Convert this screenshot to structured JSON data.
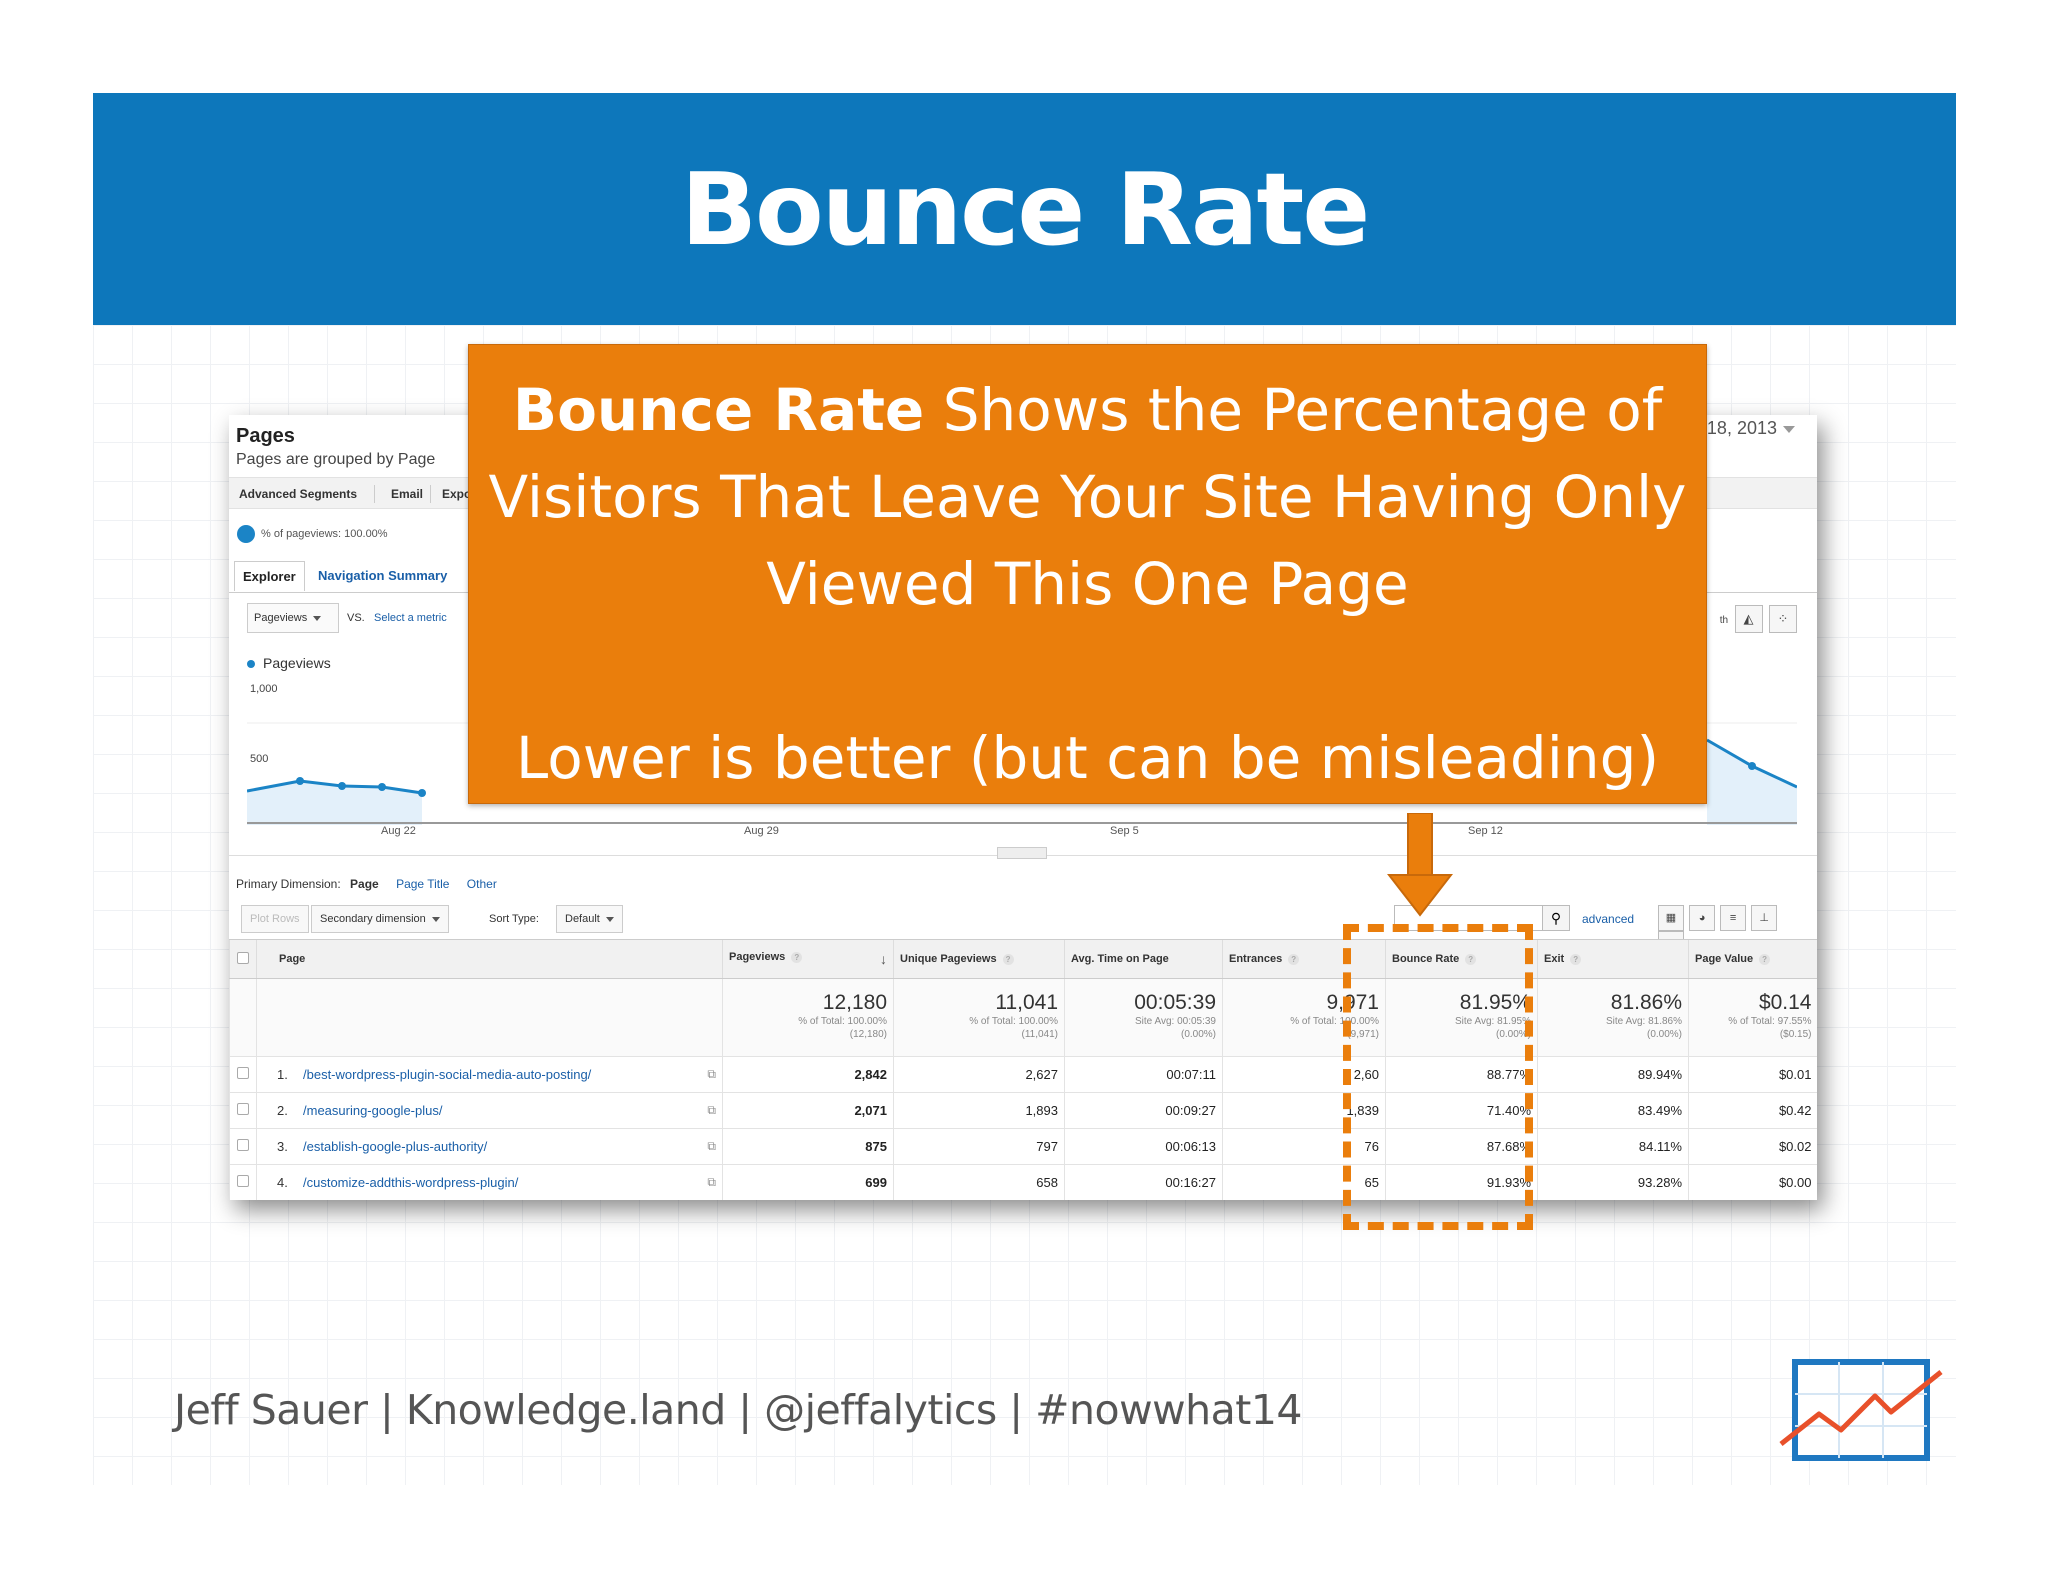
{
  "slide": {
    "title": "Bounce Rate",
    "callout_bold": "Bounce Rate",
    "callout_rest": " Shows the Percentage of Visitors That Leave Your Site Having Only Viewed This One Page",
    "callout_note": "Lower is better (but can be misleading)",
    "footer": "Jeff Sauer | Knowledge.land | @jeffalytics | #nowwhat14"
  },
  "ga": {
    "page_title": "Pages",
    "page_subtitle": "Pages are grouped by Page",
    "date_partial": "18, 2013",
    "segbar": [
      "Advanced Segments",
      "Email",
      "Expo"
    ],
    "pct_pageviews": "% of pageviews: 100.00%",
    "tabs": [
      "Explorer",
      "Navigation Summary"
    ],
    "metric_select": "Pageviews",
    "vs": "VS.",
    "select_metric": "Select a metric",
    "legend": "Pageviews",
    "y_labels": [
      "1,000",
      "500"
    ],
    "x_labels": [
      "Aug 22",
      "Aug 29",
      "Sep 5",
      "Sep 12"
    ],
    "view_partial": "th",
    "primary_dimension_label": "Primary Dimension:",
    "primary_dimension": "Page",
    "page_title_link": "Page Title",
    "other_link": "Other",
    "plot_rows": "Plot Rows",
    "secondary_dimension": "Secondary dimension",
    "sort_type_label": "Sort Type:",
    "sort_type": "Default",
    "advanced": "advanced",
    "columns": [
      "Page",
      "Pageviews",
      "Unique Pageviews",
      "Avg. Time on Page",
      "Entrances",
      "Bounce Rate",
      "Exit",
      "Page Value"
    ],
    "totals": [
      {
        "big": "12,180",
        "s1": "% of Total: 100.00%",
        "s2": "(12,180)"
      },
      {
        "big": "11,041",
        "s1": "% of Total: 100.00%",
        "s2": "(11,041)"
      },
      {
        "big": "00:05:39",
        "s1": "Site Avg: 00:05:39",
        "s2": "(0.00%)"
      },
      {
        "big": "9,971",
        "s1": "% of Total: 100.00%",
        "s2": "(9,971)"
      },
      {
        "big": "81.95%",
        "s1": "Site Avg: 81.95%",
        "s2": "(0.00%)"
      },
      {
        "big": "81.86%",
        "s1": "Site Avg: 81.86%",
        "s2": "(0.00%)"
      },
      {
        "big": "$0.14",
        "s1": "% of Total: 97.55%",
        "s2": "($0.15)"
      }
    ],
    "rows": [
      {
        "n": "1.",
        "page": "/best-wordpress-plugin-social-media-auto-posting/",
        "pv": "2,842",
        "upv": "2,627",
        "time": "00:07:11",
        "ent": "2,60",
        "br": "88.77%",
        "exit": "89.94%",
        "val": "$0.01"
      },
      {
        "n": "2.",
        "page": "/measuring-google-plus/",
        "pv": "2,071",
        "upv": "1,893",
        "time": "00:09:27",
        "ent": "1,839",
        "br": "71.40%",
        "exit": "83.49%",
        "val": "$0.42"
      },
      {
        "n": "3.",
        "page": "/establish-google-plus-authority/",
        "pv": "875",
        "upv": "797",
        "time": "00:06:13",
        "ent": "76",
        "br": "87.68%",
        "exit": "84.11%",
        "val": "$0.02"
      },
      {
        "n": "4.",
        "page": "/customize-addthis-wordpress-plugin/",
        "pv": "699",
        "upv": "658",
        "time": "00:16:27",
        "ent": "65",
        "br": "91.93%",
        "exit": "93.28%",
        "val": "$0.00"
      }
    ]
  },
  "colors": {
    "banner": "#0d77bb",
    "callout": "#ea7e0c",
    "link": "#1a5fa8",
    "series": "#1b84c6"
  }
}
